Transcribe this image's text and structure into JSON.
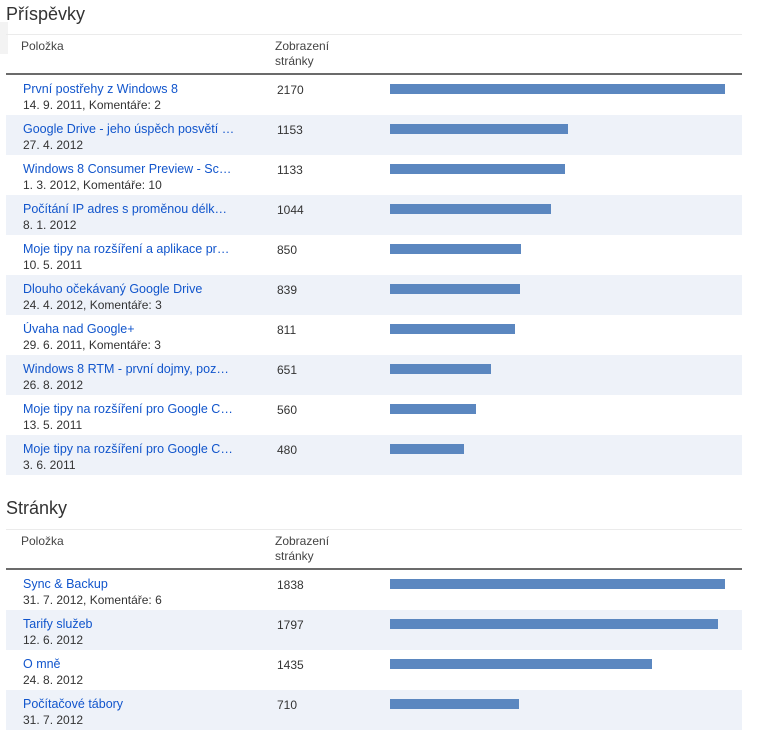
{
  "posts": {
    "title": "Příspěvky",
    "header": {
      "item": "Položka",
      "views": "Zobrazení stránky"
    },
    "max_views": 2170,
    "rows": [
      {
        "title": "První postřehy z Windows 8",
        "meta": "14. 9. 2011, Komentáře: 2",
        "views": "2170"
      },
      {
        "title": "Google Drive - jeho úspěch posvětí …",
        "meta": "27. 4. 2012",
        "views": "1153"
      },
      {
        "title": "Windows 8 Consumer Preview - Sc…",
        "meta": "1. 3. 2012, Komentáře: 10",
        "views": "1133"
      },
      {
        "title": "Počítání IP adres s proměnou délk…",
        "meta": "8. 1. 2012",
        "views": "1044"
      },
      {
        "title": "Moje tipy na rozšíření a aplikace pr…",
        "meta": "10. 5. 2011",
        "views": "850"
      },
      {
        "title": "Dlouho očekávaný Google Drive",
        "meta": "24. 4. 2012, Komentáře: 3",
        "views": "839"
      },
      {
        "title": "Úvaha nad Google+",
        "meta": "29. 6. 2011, Komentáře: 3",
        "views": "811"
      },
      {
        "title": "Windows 8 RTM - první dojmy, poz…",
        "meta": "26. 8. 2012",
        "views": "651"
      },
      {
        "title": "Moje tipy na rozšíření pro Google C…",
        "meta": "13. 5. 2011",
        "views": "560"
      },
      {
        "title": "Moje tipy na rozšíření pro Google C…",
        "meta": "3. 6. 2011",
        "views": "480"
      }
    ]
  },
  "pages": {
    "title": "Stránky",
    "header": {
      "item": "Položka",
      "views": "Zobrazení stránky"
    },
    "max_views": 1838,
    "rows": [
      {
        "title": "Sync & Backup",
        "meta": "31. 7. 2012, Komentáře: 6",
        "views": "1838"
      },
      {
        "title": "Tarify služeb",
        "meta": "12. 6. 2012",
        "views": "1797"
      },
      {
        "title": "O mně",
        "meta": "24. 8. 2012",
        "views": "1435"
      },
      {
        "title": "Počítačové tábory",
        "meta": "31. 7. 2012",
        "views": "710"
      }
    ]
  },
  "colors": {
    "bar": "#5b87c0",
    "link": "#1155cc",
    "alt_row": "#eef2f9"
  }
}
